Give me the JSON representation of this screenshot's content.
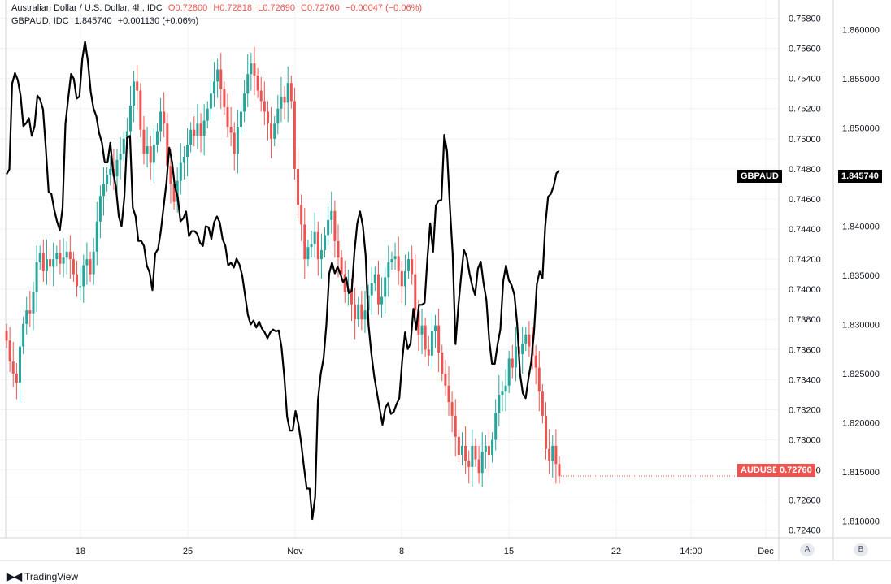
{
  "header": {
    "title": "Australian Dollar / U.S. Dollar, 4h, IDC",
    "open": "O0.72800",
    "high": "H0.72818",
    "low": "L0.72690",
    "close": "C0.72760",
    "change": "−0.00047 (−0.06%)",
    "compare_label": "GBPAUD, IDC",
    "compare_value": "1.845740",
    "compare_change": "+0.001130 (+0.06%)"
  },
  "tags": {
    "gbpaud_name": "GBPAUD",
    "gbpaud_value": "1.845740",
    "audusd_name": "AUDUSD",
    "audusd_value": "0.72760"
  },
  "footer": {
    "brand": "TradingView",
    "scale_a": "A",
    "scale_b": "B"
  },
  "colors": {
    "up": "#26a69a",
    "down": "#ef5350",
    "compare": "#000000",
    "grid": "#f0f3fa"
  },
  "chart_data": {
    "type": "line",
    "x_ticks": [
      "18",
      "25",
      "Nov",
      "8",
      "15",
      "22",
      "14:00",
      "Dec"
    ],
    "y_right_ticks": [
      "0.75800",
      "0.75600",
      "0.75400",
      "0.75200",
      "0.75000",
      "0.74800",
      "0.74600",
      "0.74400",
      "0.74200",
      "0.74000",
      "0.73800",
      "0.73600",
      "0.73400",
      "0.73200",
      "0.73000",
      "0.72800",
      "0.72600",
      "0.72400"
    ],
    "y_left_ticks": [
      "1.860000",
      "1.855000",
      "1.850000",
      "1.845000",
      "1.840000",
      "1.835000",
      "1.830000",
      "1.825000",
      "1.820000",
      "1.815000",
      "1.810000"
    ],
    "audusd_range": [
      0.7235,
      0.759
    ],
    "gbpaud_range": [
      1.8083,
      1.8627
    ],
    "series": [
      {
        "name": "AUDUSD",
        "kind": "candlestick",
        "closes": [
          0.7366,
          0.7352,
          0.7344,
          0.7338,
          0.7362,
          0.7377,
          0.7386,
          0.7384,
          0.7398,
          0.7418,
          0.7424,
          0.7412,
          0.742,
          0.7415,
          0.742,
          0.7424,
          0.7417,
          0.7421,
          0.7425,
          0.742,
          0.741,
          0.7402,
          0.7402,
          0.7416,
          0.742,
          0.741,
          0.7425,
          0.7445,
          0.7462,
          0.747,
          0.7476,
          0.748,
          0.7475,
          0.7486,
          0.749,
          0.75,
          0.7505,
          0.7522,
          0.7538,
          0.7532,
          0.7506,
          0.749,
          0.7495,
          0.7484,
          0.7496,
          0.7505,
          0.7518,
          0.751,
          0.7482,
          0.747,
          0.7458,
          0.7472,
          0.7484,
          0.7488,
          0.7496,
          0.7506,
          0.7502,
          0.751,
          0.7502,
          0.7512,
          0.752,
          0.753,
          0.7538,
          0.7546,
          0.7533,
          0.7521,
          0.7508,
          0.7504,
          0.749,
          0.7508,
          0.7518,
          0.753,
          0.7543,
          0.755,
          0.7542,
          0.7532,
          0.7525,
          0.7518,
          0.751,
          0.75,
          0.751,
          0.752,
          0.7528,
          0.7524,
          0.7537,
          0.7525,
          0.748,
          0.7456,
          0.7443,
          0.742,
          0.7428,
          0.743,
          0.7438,
          0.742,
          0.7426,
          0.7436,
          0.7446,
          0.7452,
          0.7432,
          0.7421,
          0.741,
          0.7398,
          0.74,
          0.739,
          0.738,
          0.739,
          0.738,
          0.7386,
          0.7396,
          0.7404,
          0.741,
          0.739,
          0.7395,
          0.7408,
          0.7418,
          0.742,
          0.7422,
          0.7412,
          0.7402,
          0.7412,
          0.742,
          0.741,
          0.7386,
          0.737,
          0.7376,
          0.736,
          0.7356,
          0.7372,
          0.7376,
          0.7358,
          0.7344,
          0.7336,
          0.7325,
          0.7316,
          0.7302,
          0.729,
          0.7296,
          0.7286,
          0.7282,
          0.7296,
          0.7287,
          0.7278,
          0.7292,
          0.7296,
          0.729,
          0.73,
          0.7318,
          0.733,
          0.7332,
          0.7336,
          0.7354,
          0.7348,
          0.7362,
          0.7357,
          0.7364,
          0.737,
          0.7362,
          0.7356,
          0.7348,
          0.7332,
          0.7316,
          0.7294,
          0.7286,
          0.7296,
          0.7284,
          0.7276
        ],
        "last": 0.7276
      },
      {
        "name": "GBPAUD",
        "kind": "line",
        "values": [
          1.8453,
          1.8458,
          1.8545,
          1.8556,
          1.8549,
          1.8533,
          1.8502,
          1.8505,
          1.851,
          1.8492,
          1.8502,
          1.8533,
          1.8529,
          1.8519,
          1.848,
          1.8435,
          1.8433,
          1.8417,
          1.8405,
          1.8396,
          1.8419,
          1.8504,
          1.853,
          1.8555,
          1.855,
          1.853,
          1.8532,
          1.857,
          1.8588,
          1.8568,
          1.8537,
          1.852,
          1.8512,
          1.8495,
          1.8485,
          1.8465,
          1.8465,
          1.8485,
          1.8455,
          1.844,
          1.841,
          1.84,
          1.843,
          1.849,
          1.8492,
          1.8419,
          1.841,
          1.8385,
          1.8385,
          1.838,
          1.836,
          1.8353,
          1.8335,
          1.8372,
          1.8377,
          1.8395,
          1.842,
          1.8445,
          1.848,
          1.8465,
          1.844,
          1.843,
          1.8405,
          1.8408,
          1.8415,
          1.839,
          1.8395,
          1.8395,
          1.8392,
          1.8383,
          1.838,
          1.84,
          1.8399,
          1.8387,
          1.8404,
          1.841,
          1.8404,
          1.8387,
          1.838,
          1.836,
          1.8363,
          1.8358,
          1.8367,
          1.8361,
          1.835,
          1.833,
          1.831,
          1.83,
          1.8304,
          1.8297,
          1.8303,
          1.8296,
          1.8292,
          1.8286,
          1.8292,
          1.8295,
          1.8293,
          1.8294,
          1.8277,
          1.8247,
          1.8206,
          1.8192,
          1.8192,
          1.8212,
          1.8199,
          1.818,
          1.8155,
          1.8133,
          1.8133,
          1.8102,
          1.8125,
          1.8223,
          1.825,
          1.8266,
          1.83,
          1.8352,
          1.8363,
          1.8352,
          1.8359,
          1.8351,
          1.8343,
          1.8348,
          1.8332,
          1.8334,
          1.8374,
          1.8403,
          1.8415,
          1.84,
          1.837,
          1.83,
          1.8271,
          1.8248,
          1.8231,
          1.8214,
          1.8198,
          1.8215,
          1.822,
          1.8209,
          1.8211,
          1.8219,
          1.8225,
          1.8263,
          1.8292,
          1.8275,
          1.8281,
          1.8316,
          1.8295,
          1.832,
          1.832,
          1.8322,
          1.8368,
          1.8403,
          1.8374,
          1.8421,
          1.8426,
          1.8427,
          1.8493,
          1.8476,
          1.842,
          1.8372,
          1.828,
          1.8318,
          1.8349,
          1.8376,
          1.8369,
          1.8352,
          1.8339,
          1.833,
          1.8357,
          1.8364,
          1.8342,
          1.8325,
          1.8285,
          1.826,
          1.826,
          1.828,
          1.8295,
          1.8344,
          1.836,
          1.8345,
          1.834,
          1.833,
          1.83,
          1.825,
          1.823,
          1.8225,
          1.8245,
          1.8262,
          1.8292,
          1.8341,
          1.8354,
          1.8347,
          1.84,
          1.843,
          1.8433,
          1.8441,
          1.8454,
          1.8457
        ]
      }
    ]
  }
}
